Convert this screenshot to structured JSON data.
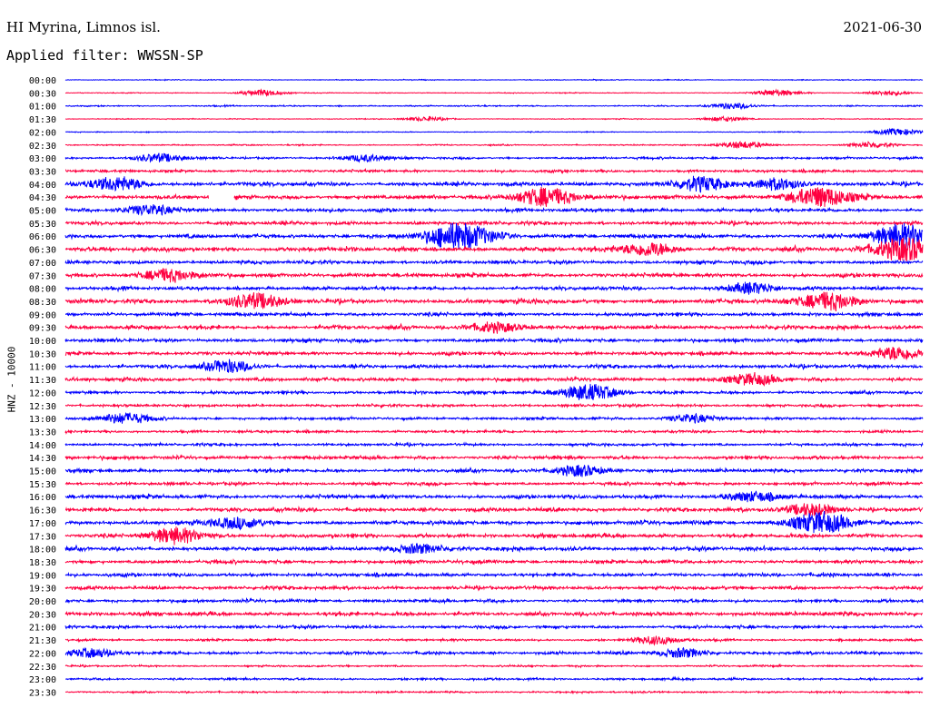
{
  "header": {
    "station": "HI Myrina, Limnos isl.",
    "date": "2021-06-30",
    "filter": "Applied filter: WWSSN-SP"
  },
  "chart_data": {
    "type": "line",
    "title": "HI Myrina, Limnos isl.",
    "ylabel": "HNZ - 10000",
    "xlabel": "",
    "grid": false,
    "colors": [
      "#0000ff",
      "#ff0040"
    ],
    "row_labels": [
      "00:00",
      "00:30",
      "01:00",
      "01:30",
      "02:00",
      "02:30",
      "03:00",
      "03:30",
      "04:00",
      "04:30",
      "05:00",
      "05:30",
      "06:00",
      "06:30",
      "07:00",
      "07:30",
      "08:00",
      "08:30",
      "09:00",
      "09:30",
      "10:00",
      "10:30",
      "11:00",
      "11:30",
      "12:00",
      "12:30",
      "13:00",
      "13:30",
      "14:00",
      "14:30",
      "15:00",
      "15:30",
      "16:00",
      "16:30",
      "17:00",
      "17:30",
      "18:00",
      "18:30",
      "19:00",
      "19:30",
      "20:00",
      "20:30",
      "21:00",
      "21:30",
      "22:00",
      "22:30",
      "23:00",
      "23:30"
    ],
    "noise_level": [
      0.2,
      0.2,
      0.3,
      0.2,
      0.2,
      0.3,
      0.5,
      0.6,
      0.9,
      0.9,
      0.8,
      0.8,
      0.9,
      1.0,
      0.8,
      0.9,
      0.8,
      1.0,
      0.8,
      0.9,
      0.8,
      0.8,
      0.8,
      0.8,
      0.7,
      0.6,
      0.6,
      0.6,
      0.6,
      0.8,
      0.8,
      0.7,
      0.9,
      0.9,
      0.9,
      0.9,
      0.9,
      0.8,
      0.8,
      0.8,
      0.7,
      0.9,
      0.7,
      0.5,
      0.7,
      0.4,
      0.5,
      0.4
    ],
    "events": [
      {
        "row": "00:30",
        "time_fraction": 0.23,
        "amplitude": 0.9
      },
      {
        "row": "00:30",
        "time_fraction": 0.83,
        "amplitude": 0.9
      },
      {
        "row": "00:30",
        "time_fraction": 0.96,
        "amplitude": 0.7
      },
      {
        "row": "01:00",
        "time_fraction": 0.78,
        "amplitude": 0.8
      },
      {
        "row": "01:30",
        "time_fraction": 0.42,
        "amplitude": 0.6
      },
      {
        "row": "01:30",
        "time_fraction": 0.77,
        "amplitude": 0.7
      },
      {
        "row": "02:00",
        "time_fraction": 0.97,
        "amplitude": 1.0
      },
      {
        "row": "02:30",
        "time_fraction": 0.79,
        "amplitude": 1.0
      },
      {
        "row": "02:30",
        "time_fraction": 0.94,
        "amplitude": 0.8
      },
      {
        "row": "03:00",
        "time_fraction": 0.11,
        "amplitude": 1.2
      },
      {
        "row": "03:00",
        "time_fraction": 0.35,
        "amplitude": 1.0
      },
      {
        "row": "04:00",
        "time_fraction": 0.06,
        "amplitude": 2.0
      },
      {
        "row": "04:00",
        "time_fraction": 0.74,
        "amplitude": 2.0
      },
      {
        "row": "04:00",
        "time_fraction": 0.83,
        "amplitude": 1.6
      },
      {
        "row": "04:30",
        "time_fraction": 0.56,
        "amplitude": 2.8
      },
      {
        "row": "04:30",
        "time_fraction": 0.88,
        "amplitude": 3.0
      },
      {
        "row": "05:00",
        "time_fraction": 0.1,
        "amplitude": 1.5
      },
      {
        "row": "06:00",
        "time_fraction": 0.46,
        "amplitude": 4.0
      },
      {
        "row": "06:00",
        "time_fraction": 0.98,
        "amplitude": 3.5
      },
      {
        "row": "06:30",
        "time_fraction": 0.68,
        "amplitude": 2.0
      },
      {
        "row": "06:30",
        "time_fraction": 0.98,
        "amplitude": 3.5
      },
      {
        "row": "07:30",
        "time_fraction": 0.12,
        "amplitude": 1.8
      },
      {
        "row": "08:00",
        "time_fraction": 0.8,
        "amplitude": 1.6
      },
      {
        "row": "08:30",
        "time_fraction": 0.22,
        "amplitude": 2.2
      },
      {
        "row": "08:30",
        "time_fraction": 0.89,
        "amplitude": 2.6
      },
      {
        "row": "09:30",
        "time_fraction": 0.5,
        "amplitude": 1.5
      },
      {
        "row": "10:30",
        "time_fraction": 0.97,
        "amplitude": 1.8
      },
      {
        "row": "11:00",
        "time_fraction": 0.19,
        "amplitude": 1.8
      },
      {
        "row": "11:30",
        "time_fraction": 0.8,
        "amplitude": 1.6
      },
      {
        "row": "12:00",
        "time_fraction": 0.61,
        "amplitude": 2.5
      },
      {
        "row": "13:00",
        "time_fraction": 0.07,
        "amplitude": 1.6
      },
      {
        "row": "13:00",
        "time_fraction": 0.73,
        "amplitude": 1.3
      },
      {
        "row": "15:00",
        "time_fraction": 0.6,
        "amplitude": 1.6
      },
      {
        "row": "16:00",
        "time_fraction": 0.8,
        "amplitude": 1.4
      },
      {
        "row": "16:30",
        "time_fraction": 0.87,
        "amplitude": 1.8
      },
      {
        "row": "17:00",
        "time_fraction": 0.88,
        "amplitude": 3.0
      },
      {
        "row": "17:00",
        "time_fraction": 0.2,
        "amplitude": 1.6
      },
      {
        "row": "17:30",
        "time_fraction": 0.13,
        "amplitude": 2.2
      },
      {
        "row": "18:00",
        "time_fraction": 0.41,
        "amplitude": 1.4
      },
      {
        "row": "21:30",
        "time_fraction": 0.69,
        "amplitude": 1.2
      },
      {
        "row": "22:00",
        "time_fraction": 0.03,
        "amplitude": 1.3
      },
      {
        "row": "22:00",
        "time_fraction": 0.72,
        "amplitude": 1.3
      }
    ],
    "gaps": [
      {
        "row": "04:30",
        "from_fraction": 0.167,
        "to_fraction": 0.197
      }
    ]
  }
}
